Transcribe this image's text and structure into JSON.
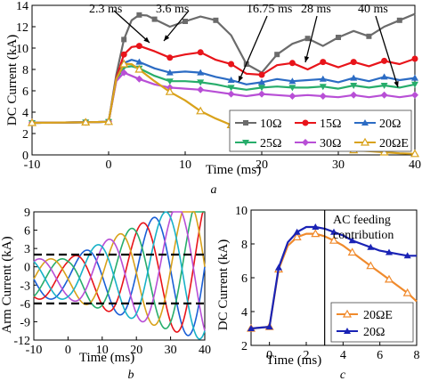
{
  "chart_data": [
    {
      "panel": "a",
      "type": "line",
      "caption": "a",
      "xlabel": "Time (ms)",
      "ylabel": "DC Current (kA)",
      "xlim": [
        -10,
        40
      ],
      "ylim": [
        0,
        14
      ],
      "xticks": [
        -10,
        0,
        10,
        20,
        30,
        40
      ],
      "yticks": [
        0,
        2,
        4,
        6,
        8,
        10,
        12,
        14
      ],
      "annotations": [
        "2.3 ms",
        "3.6 ms",
        "16.75 ms",
        "28 ms",
        "40 ms"
      ],
      "legend_position": "bottom-right",
      "series": [
        {
          "name": "10Ω",
          "color": "#6b6b6b",
          "marker": "square",
          "x": [
            -10,
            -3,
            0,
            1,
            2,
            3,
            4,
            5,
            6,
            8,
            10,
            12,
            14,
            16,
            18,
            20,
            22,
            24,
            26,
            28,
            30,
            32,
            34,
            36,
            38,
            40
          ],
          "y": [
            3,
            3.05,
            3.1,
            7.5,
            10.8,
            12.6,
            13.1,
            13.05,
            12.7,
            12.0,
            12.5,
            12.95,
            12.6,
            11.2,
            8.5,
            7.7,
            9.4,
            10.4,
            10.9,
            10.2,
            11.0,
            11.6,
            11.1,
            12.0,
            12.6,
            13.2
          ]
        },
        {
          "name": "15Ω",
          "color": "#e8141a",
          "marker": "circle",
          "x": [
            -10,
            -3,
            0,
            1,
            2,
            3,
            4,
            6,
            8,
            10,
            12,
            14,
            16,
            18,
            20,
            22,
            24,
            26,
            28,
            30,
            32,
            34,
            36,
            38,
            40
          ],
          "y": [
            3,
            3.05,
            3.1,
            7.2,
            9.4,
            10.1,
            10.2,
            9.7,
            9.1,
            9.4,
            9.6,
            8.9,
            8.5,
            7.6,
            7.5,
            8.4,
            8.6,
            8.0,
            8.7,
            8.2,
            8.7,
            8.3,
            8.8,
            8.5,
            9.0
          ]
        },
        {
          "name": "20Ω",
          "color": "#2c6cc4",
          "marker": "triangle-up",
          "x": [
            -10,
            -3,
            0,
            1,
            2,
            3,
            4,
            6,
            8,
            10,
            12,
            14,
            16,
            18,
            20,
            22,
            24,
            26,
            28,
            30,
            32,
            34,
            36,
            38,
            40
          ],
          "y": [
            3,
            3.05,
            3.1,
            7.1,
            8.6,
            8.9,
            8.7,
            8.1,
            7.7,
            7.8,
            7.7,
            7.3,
            7.0,
            6.6,
            6.8,
            7.1,
            6.9,
            7.0,
            7.1,
            6.8,
            7.2,
            6.9,
            7.3,
            7.0,
            7.2
          ]
        },
        {
          "name": "25Ω",
          "color": "#27ad6b",
          "marker": "triangle-down",
          "x": [
            -10,
            -3,
            0,
            1,
            2,
            3,
            4,
            6,
            8,
            10,
            12,
            14,
            16,
            18,
            20,
            22,
            24,
            26,
            28,
            30,
            32,
            34,
            36,
            38,
            40
          ],
          "y": [
            3,
            3.05,
            3.1,
            7.0,
            8.2,
            8.3,
            8.1,
            7.4,
            6.9,
            6.9,
            6.8,
            6.6,
            6.3,
            6.1,
            6.3,
            6.4,
            6.3,
            6.3,
            6.4,
            6.2,
            6.5,
            6.3,
            6.5,
            6.3,
            6.6
          ]
        },
        {
          "name": "30Ω",
          "color": "#b84fd6",
          "marker": "diamond",
          "x": [
            -10,
            -3,
            0,
            1,
            2,
            3,
            4,
            6,
            8,
            10,
            12,
            14,
            16,
            18,
            20,
            22,
            24,
            26,
            28,
            30,
            32,
            34,
            36,
            38,
            40
          ],
          "y": [
            3,
            3.05,
            3.1,
            6.9,
            7.7,
            7.4,
            7.1,
            6.6,
            6.3,
            6.2,
            6.1,
            5.9,
            5.7,
            5.5,
            5.7,
            5.6,
            5.5,
            5.6,
            5.5,
            5.4,
            5.6,
            5.4,
            5.6,
            5.4,
            5.6
          ]
        },
        {
          "name": "20ΩE",
          "color": "#d9a21b",
          "marker": "open-triangle",
          "x": [
            -10,
            -3,
            0,
            1,
            2,
            3,
            4,
            6,
            8,
            10,
            12,
            14,
            16,
            18,
            20,
            22,
            24,
            26,
            28,
            30,
            32,
            34,
            36,
            38,
            40
          ],
          "y": [
            3,
            3.05,
            3.1,
            7.1,
            8.5,
            8.5,
            8.0,
            6.9,
            5.9,
            5.1,
            4.1,
            3.4,
            2.8,
            2.4,
            2.0,
            1.6,
            1.3,
            1.0,
            0.8,
            0.6,
            0.45,
            0.35,
            0.25,
            0.15,
            0.1
          ]
        }
      ]
    },
    {
      "panel": "b",
      "type": "line",
      "caption": "b",
      "xlabel": "Time (ms)",
      "ylabel": "Arm Current (kA)",
      "xlim": [
        -10,
        40
      ],
      "ylim": [
        -12,
        9
      ],
      "xticks": [
        -10,
        0,
        10,
        20,
        30,
        40
      ],
      "yticks": [
        -12,
        -9,
        -6,
        -3,
        0,
        3,
        6,
        9
      ],
      "reference_lines": [
        2,
        -6
      ],
      "series": [
        {
          "color": "#1b5fd6",
          "phase": 0
        },
        {
          "color": "#e8141a",
          "phase": 60
        },
        {
          "color": "#27ad6b",
          "phase": 120
        },
        {
          "color": "#d9a21b",
          "phase": 180
        },
        {
          "color": "#b84fd6",
          "phase": 240
        },
        {
          "color": "#19b2c8",
          "phase": 300
        }
      ]
    },
    {
      "panel": "c",
      "type": "line",
      "caption": "c",
      "xlabel": "Time (ms)",
      "ylabel": "DC Current (kA)",
      "xlim": [
        -1,
        8
      ],
      "ylim": [
        2,
        10
      ],
      "xticks": [
        0,
        2,
        4,
        6,
        8
      ],
      "yticks": [
        2,
        4,
        6,
        8,
        10
      ],
      "vline_x": 3,
      "annotation": "AC feeding contribution",
      "legend_position": "bottom-right",
      "series": [
        {
          "name": "20ΩE",
          "color": "#f08a2c",
          "marker": "open-triangle",
          "x": [
            -1,
            0,
            0.5,
            1,
            1.5,
            2,
            2.5,
            3,
            3.5,
            4,
            4.5,
            5,
            5.5,
            6,
            6.5,
            7,
            7.5,
            8
          ],
          "y": [
            3.0,
            3.1,
            6.5,
            7.9,
            8.4,
            8.6,
            8.6,
            8.45,
            8.2,
            7.9,
            7.5,
            7.1,
            6.7,
            6.3,
            5.9,
            5.5,
            5.1,
            4.6
          ]
        },
        {
          "name": "20Ω",
          "color": "#1a23b5",
          "marker": "triangle-up",
          "x": [
            -1,
            0,
            0.5,
            1,
            1.5,
            2,
            2.5,
            3,
            3.5,
            4,
            4.5,
            5,
            5.5,
            6,
            6.5,
            7,
            7.5,
            8
          ],
          "y": [
            3.0,
            3.1,
            6.6,
            8.1,
            8.7,
            9.0,
            9.0,
            8.9,
            8.7,
            8.5,
            8.2,
            8.0,
            7.8,
            7.6,
            7.5,
            7.4,
            7.3,
            7.3
          ]
        }
      ]
    }
  ]
}
